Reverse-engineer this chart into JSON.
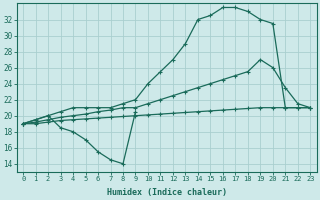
{
  "bg_color": "#cee9e9",
  "line_color": "#1a6b5a",
  "grid_color": "#b8d8d8",
  "xlabel": "Humidex (Indice chaleur)",
  "xlim": [
    -0.5,
    23.5
  ],
  "ylim": [
    13,
    34
  ],
  "yticks": [
    14,
    16,
    18,
    20,
    22,
    24,
    26,
    28,
    30,
    32
  ],
  "xticks": [
    0,
    1,
    2,
    3,
    4,
    5,
    6,
    7,
    8,
    9,
    10,
    11,
    12,
    13,
    14,
    15,
    16,
    17,
    18,
    19,
    20,
    21,
    22,
    23
  ],
  "line_flat": {
    "x": [
      0,
      1,
      2,
      3,
      4,
      5,
      6,
      7,
      8,
      9,
      10,
      11,
      12,
      13,
      14,
      15,
      16,
      17,
      18,
      19,
      20,
      21,
      22,
      23
    ],
    "y": [
      19,
      19,
      19.2,
      19.4,
      19.5,
      19.6,
      19.7,
      19.8,
      19.9,
      20,
      20.1,
      20.2,
      20.3,
      20.4,
      20.5,
      20.6,
      20.7,
      20.8,
      20.9,
      21,
      21,
      21,
      21,
      21
    ]
  },
  "line_mid": {
    "x": [
      0,
      1,
      2,
      3,
      4,
      5,
      6,
      7,
      8,
      9,
      10,
      11,
      12,
      13,
      14,
      15,
      16,
      17,
      18,
      19,
      20,
      21,
      22,
      23
    ],
    "y": [
      19,
      19.2,
      19.5,
      19.8,
      20,
      20.2,
      20.5,
      20.7,
      21,
      21,
      21.5,
      22,
      22.5,
      23,
      23.5,
      24,
      24.5,
      25,
      25.5,
      27,
      26,
      23.5,
      21.5,
      21
    ]
  },
  "line_upper": {
    "x": [
      0,
      1,
      2,
      3,
      4,
      5,
      6,
      7,
      8,
      9,
      10,
      11,
      12,
      13,
      14,
      15,
      16,
      17,
      18,
      19,
      20,
      21,
      22,
      23
    ],
    "y": [
      19,
      19.5,
      20,
      20.5,
      21,
      21,
      21,
      21,
      21.5,
      22,
      24,
      25.5,
      27,
      29,
      32,
      32.5,
      33.5,
      33.5,
      33,
      32,
      31.5,
      21,
      21,
      21
    ]
  },
  "line_dip": {
    "x": [
      0,
      2,
      3,
      4,
      5,
      6,
      7,
      8,
      9
    ],
    "y": [
      19,
      20,
      18.5,
      18,
      17,
      15.5,
      14.5,
      14,
      20.5
    ]
  }
}
